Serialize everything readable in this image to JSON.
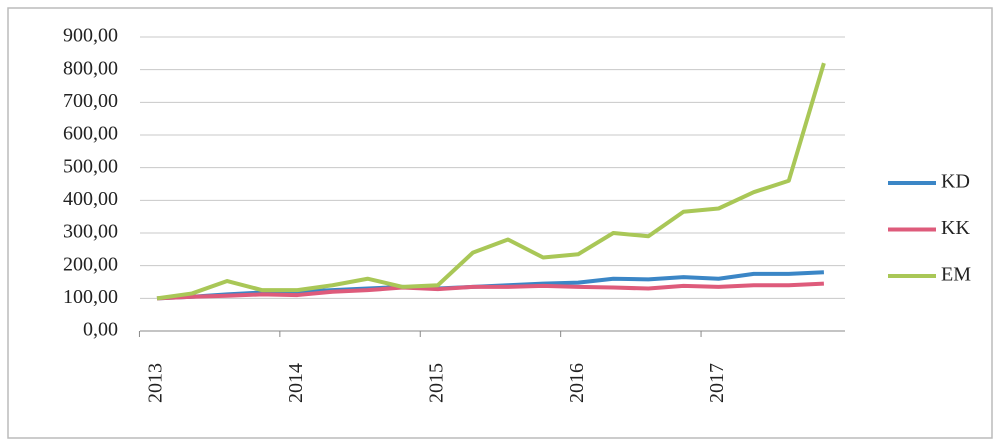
{
  "chart_data": {
    "type": "line",
    "categories": [
      "2013",
      null,
      null,
      null,
      "2014",
      null,
      null,
      null,
      "2015",
      null,
      null,
      null,
      "2016",
      null,
      null,
      null,
      "2017",
      null,
      null,
      null
    ],
    "series": [
      {
        "name": "KD",
        "color": "#3b86c6",
        "values": [
          100,
          105,
          112,
          118,
          120,
          125,
          130,
          135,
          130,
          135,
          140,
          145,
          148,
          160,
          158,
          165,
          160,
          175,
          175,
          180
        ]
      },
      {
        "name": "KK",
        "color": "#de5b7b",
        "values": [
          100,
          105,
          108,
          112,
          110,
          120,
          125,
          133,
          128,
          135,
          135,
          138,
          135,
          133,
          130,
          138,
          135,
          140,
          140,
          145
        ]
      },
      {
        "name": "EM",
        "color": "#a9c757",
        "values": [
          100,
          115,
          153,
          125,
          125,
          140,
          160,
          135,
          140,
          240,
          280,
          225,
          235,
          300,
          290,
          365,
          375,
          425,
          460,
          820
        ]
      }
    ],
    "ylim": [
      0,
      900
    ],
    "yticks": [
      {
        "value": 0,
        "label": "0,00"
      },
      {
        "value": 100,
        "label": "100,00"
      },
      {
        "value": 200,
        "label": "200,00"
      },
      {
        "value": 300,
        "label": "300,00"
      },
      {
        "value": 400,
        "label": "400,00"
      },
      {
        "value": 500,
        "label": "500,00"
      },
      {
        "value": 600,
        "label": "600,00"
      },
      {
        "value": 700,
        "label": "700,00"
      },
      {
        "value": 800,
        "label": "800,00"
      },
      {
        "value": 900,
        "label": "900,00"
      }
    ],
    "grid": true,
    "legend": "right"
  }
}
